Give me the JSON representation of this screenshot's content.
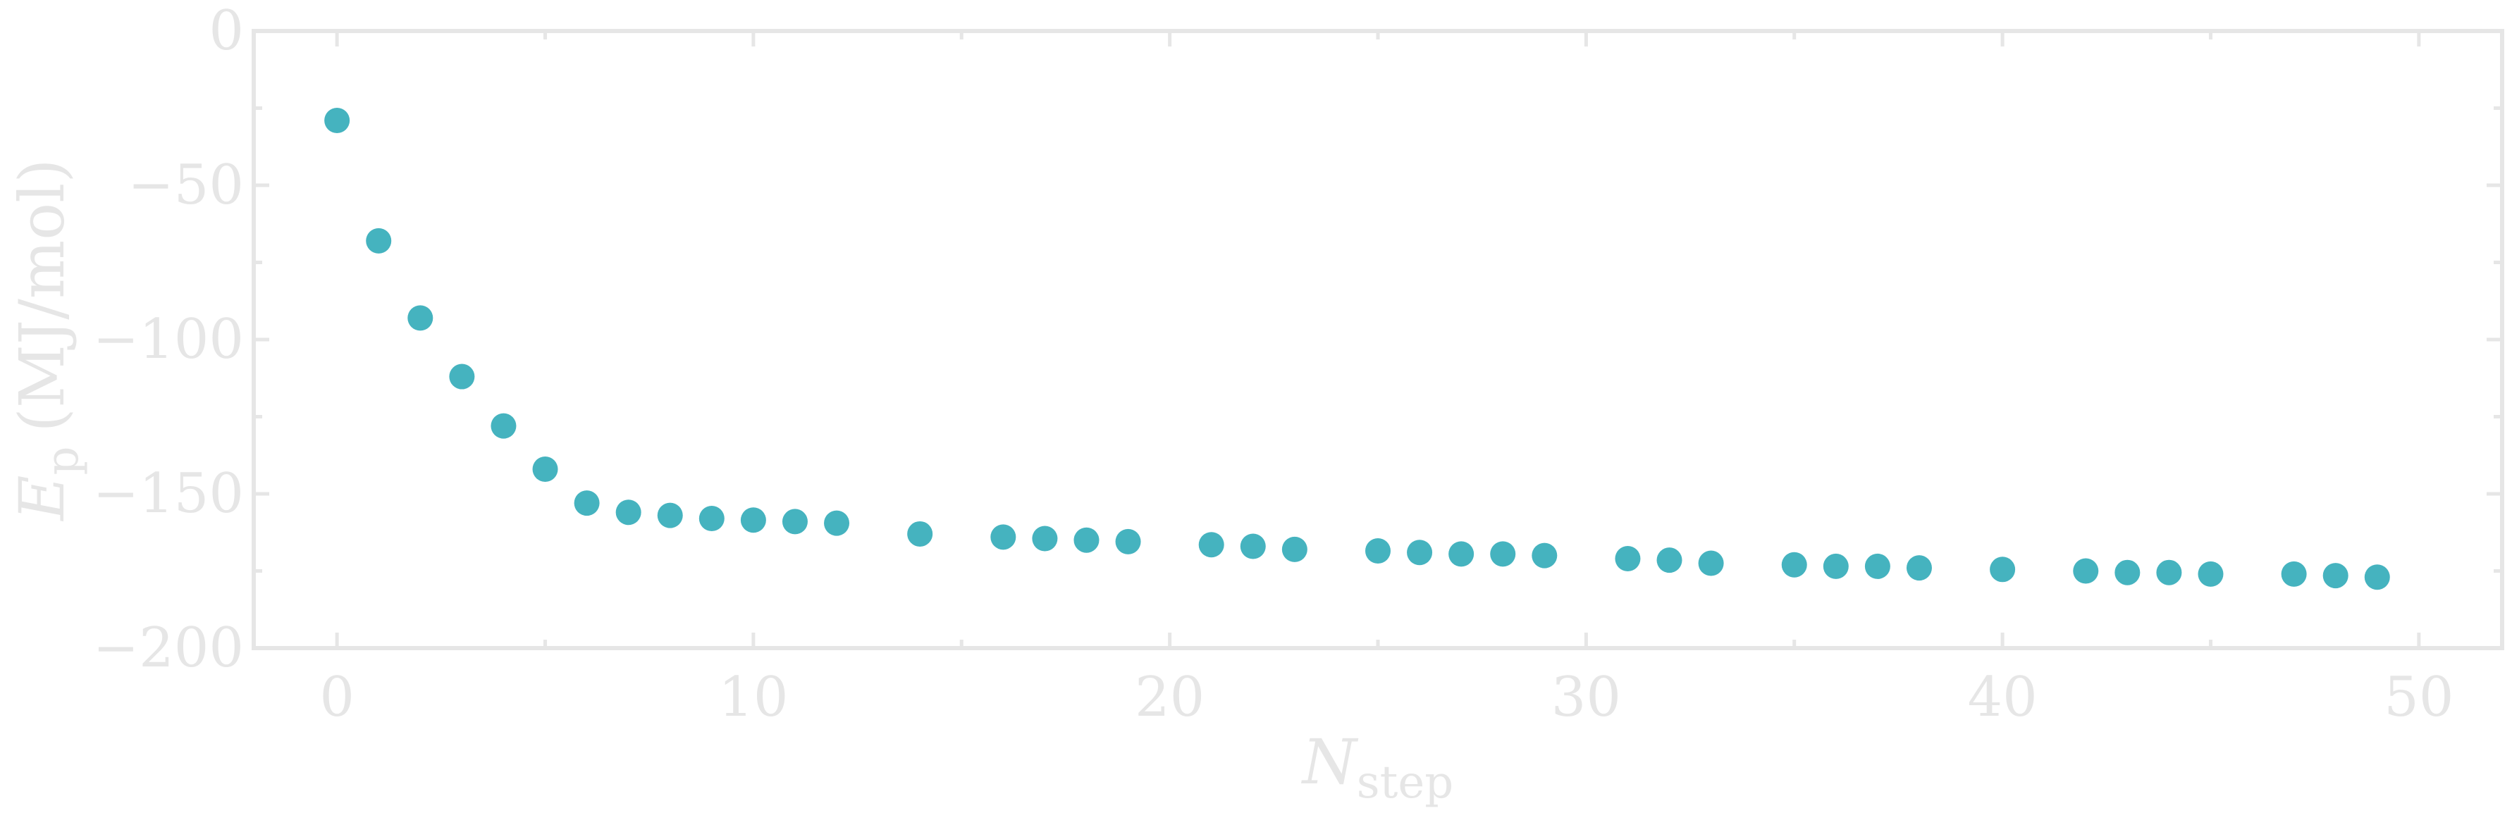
{
  "chart_data": {
    "type": "scatter",
    "xlabel": {
      "main": "N",
      "sub": "step"
    },
    "ylabel": {
      "main": "E",
      "sub": "p",
      "unit": "(MJ/mol)"
    },
    "xlim": [
      -2,
      52
    ],
    "ylim": [
      -200,
      0
    ],
    "xticks": [
      0,
      10,
      20,
      30,
      40,
      50
    ],
    "xtick_labels": [
      "0",
      "10",
      "20",
      "30",
      "40",
      "50"
    ],
    "yticks": [
      0,
      -50,
      -100,
      -150,
      -200
    ],
    "ytick_labels": [
      "0",
      "−50",
      "−100",
      "−150",
      "−200"
    ],
    "grid": false,
    "colors": {
      "marker": "#45b3bf",
      "axis": "#e6e6e6"
    },
    "series": [
      {
        "x": [
          0,
          1,
          2,
          3,
          4,
          5,
          6,
          7,
          8,
          9,
          10,
          11,
          12,
          14,
          16,
          17,
          18,
          19,
          21,
          22,
          23,
          25,
          26,
          27,
          28,
          29,
          31,
          32,
          33,
          35,
          36,
          37,
          38,
          40,
          42,
          43,
          44,
          45,
          47,
          48,
          49
        ],
        "y": [
          -29,
          -68,
          -93,
          -112,
          -128,
          -142,
          -153,
          -156,
          -157,
          -158,
          -158.5,
          -159,
          -159.5,
          -163,
          -164,
          -164.5,
          -165,
          -165.5,
          -166.5,
          -167,
          -168,
          -168.5,
          -169,
          -169.5,
          -169.5,
          -170,
          -171,
          -171.5,
          -172.5,
          -173,
          -173.5,
          -173.5,
          -174,
          -174.5,
          -175,
          -175.5,
          -175.5,
          -176,
          -176,
          -176.5,
          -177
        ]
      }
    ]
  }
}
